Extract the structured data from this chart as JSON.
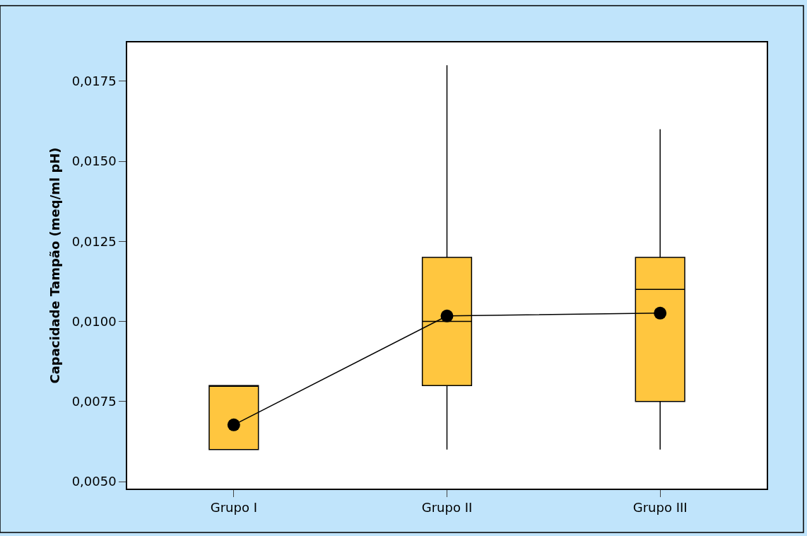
{
  "chart_data": {
    "type": "box",
    "ylabel": "Capacidade Tampão (meq/ml pH)",
    "categories": [
      "Grupo I",
      "Grupo II",
      "Grupo III"
    ],
    "boxes": [
      {
        "low": 0.006,
        "q1": 0.006,
        "median": 0.008,
        "q3": 0.008,
        "high": 0.008
      },
      {
        "low": 0.006,
        "q1": 0.008,
        "median": 0.01,
        "q3": 0.012,
        "high": 0.018
      },
      {
        "low": 0.006,
        "q1": 0.0075,
        "median": 0.011,
        "q3": 0.012,
        "high": 0.016
      }
    ],
    "color": "#ffc63f",
    "series": [
      {
        "type": "line",
        "color": "#000000",
        "values": [
          0.00677,
          0.01017,
          0.01026
        ]
      }
    ],
    "ylim": [
      0.00478,
      0.01871
    ],
    "yticks": [
      {
        "value": 0.005,
        "label": "0,0050"
      },
      {
        "value": 0.0075,
        "label": "0,0075"
      },
      {
        "value": 0.01,
        "label": "0,0100"
      },
      {
        "value": 0.0125,
        "label": "0,0125"
      },
      {
        "value": 0.015,
        "label": "0,0150"
      },
      {
        "value": 0.0175,
        "label": "0,0175"
      }
    ],
    "marker": "circle"
  }
}
